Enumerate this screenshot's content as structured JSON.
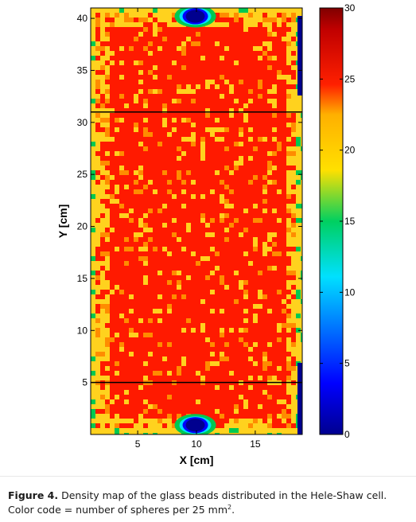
{
  "chart_data": {
    "type": "heatmap",
    "xlabel": "X [cm]",
    "ylabel": "Y [cm]",
    "xlim": [
      1,
      19
    ],
    "ylim": [
      0,
      41
    ],
    "x_ticks": [
      5,
      10,
      15
    ],
    "y_ticks": [
      5,
      10,
      15,
      20,
      25,
      30,
      35,
      40
    ],
    "colorbar": {
      "min": 0,
      "max": 30,
      "ticks": [
        0,
        5,
        10,
        15,
        20,
        25,
        30
      ],
      "label": ""
    },
    "horizontal_lines_y": [
      5,
      31
    ],
    "colors": {
      "dark_red": "#800000",
      "red": "#ff1a00",
      "orange": "#ff8c00",
      "yellow": "#ffd21e",
      "green": "#00c850",
      "cyan": "#00e0ff",
      "blue": "#0000ff",
      "dark_blue": "#00008f"
    }
  },
  "caption": {
    "figure_label": "Figure 4.",
    "text_line1": "Density map of the glass beads distributed in the Hele-Shaw cell.",
    "text_line2": "Color code = number of spheres per 25 mm",
    "superscript": "2",
    "period": "."
  }
}
